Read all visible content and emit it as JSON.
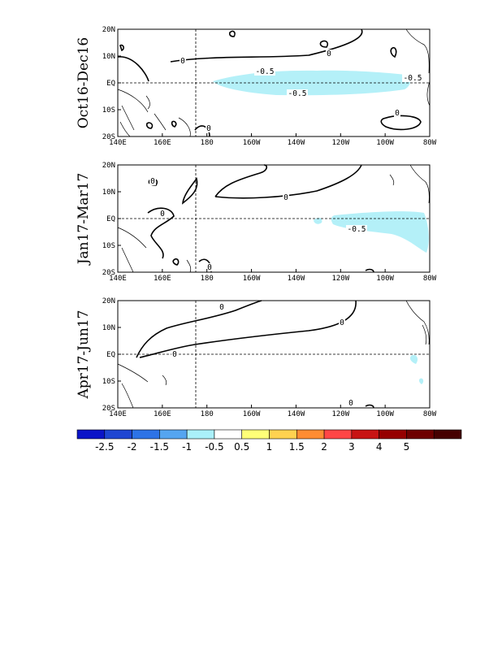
{
  "figure": {
    "panels": [
      {
        "label": "Oct16-Dec16",
        "contour_labels": [
          "-0.5",
          "-0.5",
          "-0.5",
          "0",
          "0",
          "0",
          "0"
        ]
      },
      {
        "label": "Jan17-Mar17",
        "contour_labels": [
          "-0.5",
          "0",
          "0",
          "0",
          "0"
        ]
      },
      {
        "label": "Apr17-Jun17",
        "contour_labels": [
          "0",
          "0",
          "0",
          "0"
        ]
      }
    ],
    "x_ticks": [
      "140E",
      "160E",
      "180",
      "160W",
      "140W",
      "120W",
      "100W",
      "80W"
    ],
    "y_ticks": [
      "20N",
      "10N",
      "EQ",
      "10S",
      "20S"
    ],
    "colorbar": {
      "labels": [
        "-2.5",
        "-2",
        "-1.5",
        "-1",
        "-0.5",
        "0.5",
        "1",
        "1.5",
        "2",
        "3",
        "4",
        "5"
      ],
      "colors": [
        "#0a14c8",
        "#1e46d2",
        "#2d73e6",
        "#55a5f0",
        "#aaf0fa",
        "#ffffff",
        "#ffff78",
        "#ffd250",
        "#ff8c32",
        "#ff4646",
        "#c81414",
        "#960000",
        "#6e0000",
        "#460000"
      ]
    },
    "anomaly_fill_color": "#b4f0f8"
  }
}
